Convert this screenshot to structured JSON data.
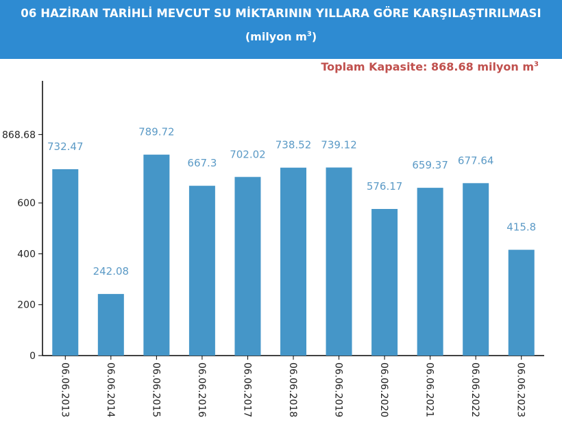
{
  "header": {
    "title": "06 HAZİRAN TARİHLİ MEVCUT SU MİKTARININ YILLARA GÖRE KARŞILAŞTIRILMASI",
    "subtitle_text": "(milyon m",
    "subtitle_sup": "3",
    "subtitle_close": ")"
  },
  "capacity": {
    "text": "Toplam Kapasite: 868.68 milyon m",
    "sup": "3"
  },
  "colors": {
    "header_bg": "#2e8bd2",
    "bar": "#4596c8",
    "value_label": "#5b9ac6",
    "capacity_text": "#c0504d"
  },
  "chart_data": {
    "type": "bar",
    "categories": [
      "06.06.2013",
      "06.06.2014",
      "06.06.2015",
      "06.06.2016",
      "06.06.2017",
      "06.06.2018",
      "06.06.2019",
      "06.06.2020",
      "06.06.2021",
      "06.06.2022",
      "06.06.2023"
    ],
    "values": [
      732.47,
      242.08,
      789.72,
      667.3,
      702.02,
      738.52,
      739.12,
      576.17,
      659.37,
      677.64,
      415.8
    ],
    "value_labels": [
      "732.47",
      "242.08",
      "789.72",
      "667.3",
      "702.02",
      "738.52",
      "739.12",
      "576.17",
      "659.37",
      "677.64",
      "415.8"
    ],
    "yticks": [
      0,
      200,
      400,
      600,
      868.68
    ],
    "ytick_labels": [
      "0",
      "200",
      "400",
      "600",
      "868.68"
    ],
    "ylim": [
      0,
      1080
    ],
    "xlabel": "",
    "ylabel": "",
    "grid": false,
    "legend": "none"
  }
}
